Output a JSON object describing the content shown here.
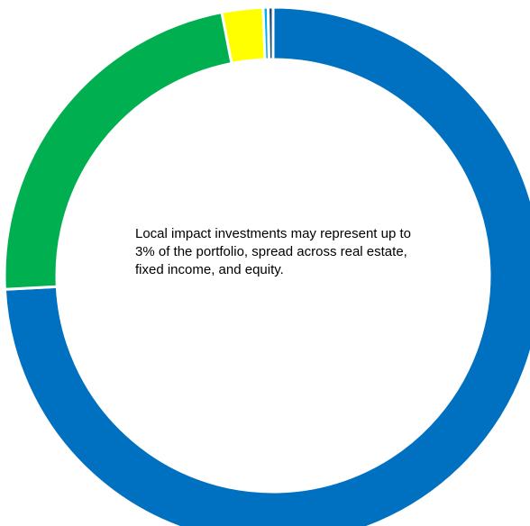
{
  "chart_data": {
    "type": "pie",
    "donut": true,
    "values": [
      75,
      23,
      2.5,
      0.3,
      0.3
    ],
    "colors": [
      "#0070C0",
      "#00B050",
      "#FFFF00",
      "#00B0F0",
      "#1F4E79"
    ],
    "center_note": "Local impact investments may represent up to 3% of the portfolio, spread across real estate, fixed income, and equity."
  }
}
